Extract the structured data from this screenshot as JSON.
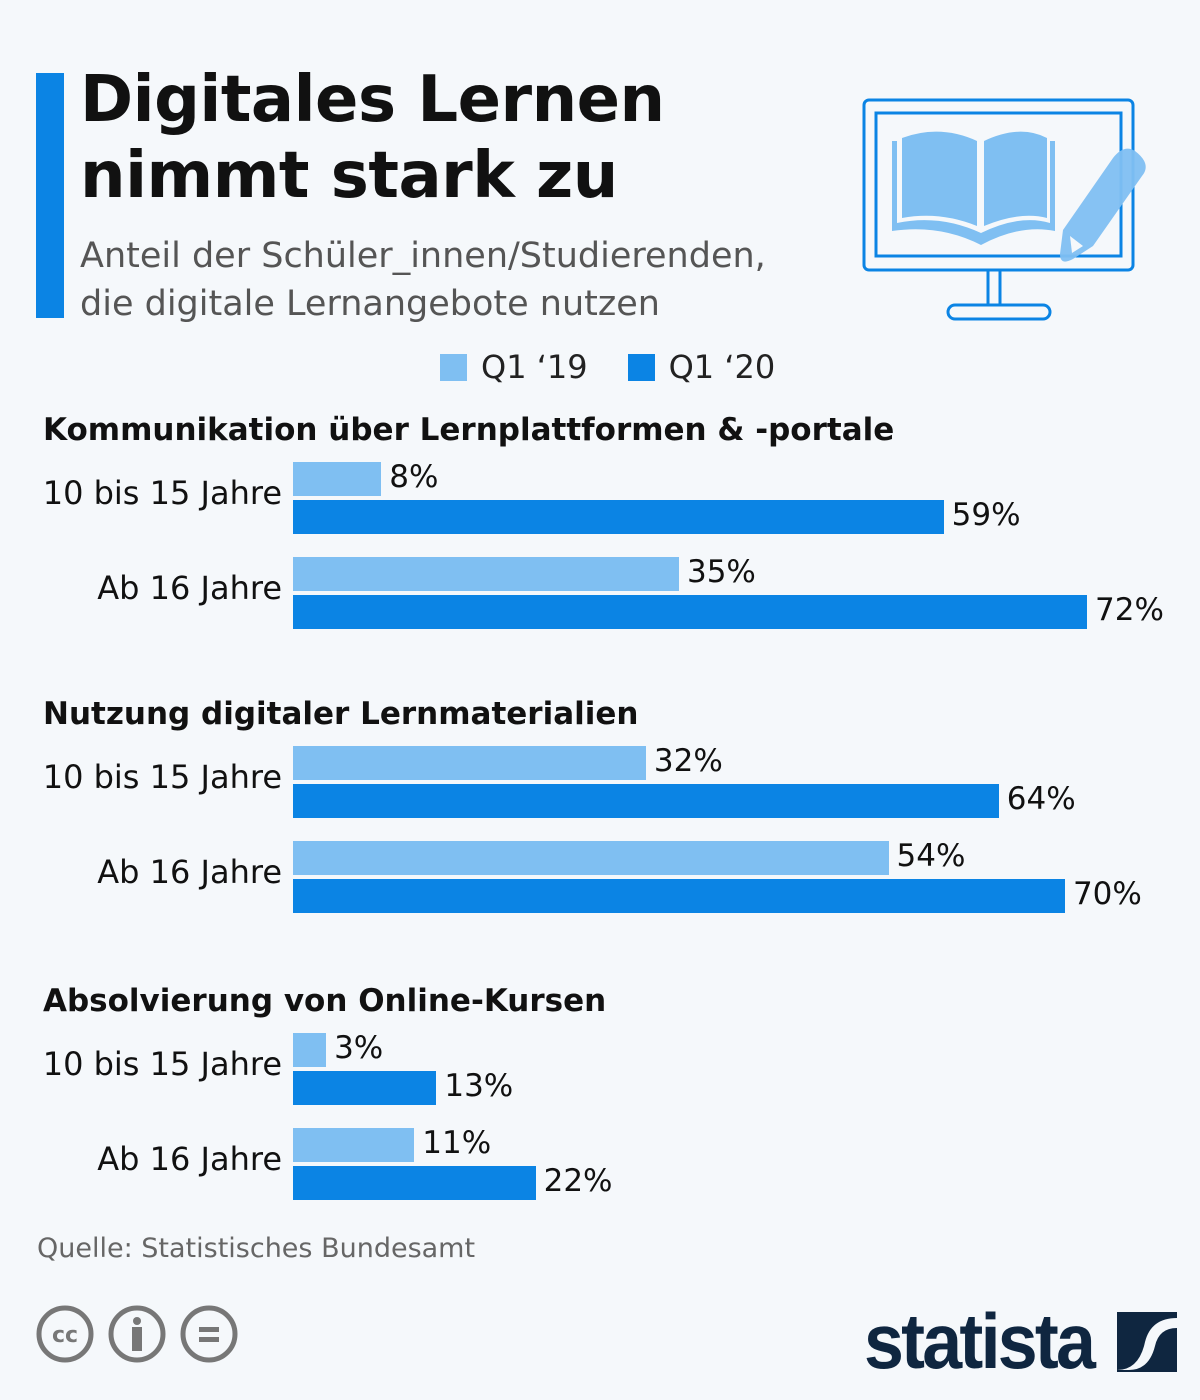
{
  "header": {
    "title_line1": "Digitales Lernen",
    "title_line2": "nimmt stark zu",
    "subtitle_line1": "Anteil der Schüler_innen/Studierenden,",
    "subtitle_line2": "die digitale Lernangebote nutzen",
    "icon": "monitor-book-pencil-icon"
  },
  "colors": {
    "q1_19": "#7fbff2",
    "q1_20": "#0b84e4",
    "accent": "#0b84e4",
    "background": "#f5f8fb"
  },
  "chart_data": {
    "type": "bar",
    "orientation": "horizontal",
    "legend": [
      "Q1 ‘19",
      "Q1 ‘20"
    ],
    "legend_placement": "top",
    "unit": "%",
    "groups": [
      {
        "title": "Kommunikation über Lernplattformen & -portale",
        "rows": [
          {
            "label": "10 bis 15 Jahre",
            "values": [
              8,
              59
            ]
          },
          {
            "label": "Ab 16 Jahre",
            "values": [
              35,
              72
            ]
          }
        ]
      },
      {
        "title": "Nutzung digitaler Lernmaterialien",
        "rows": [
          {
            "label": "10 bis 15 Jahre",
            "values": [
              32,
              64
            ]
          },
          {
            "label": "Ab 16 Jahre",
            "values": [
              54,
              70
            ]
          }
        ]
      },
      {
        "title": "Absolvierung von Online-Kursen",
        "rows": [
          {
            "label": "10 bis 15 Jahre",
            "values": [
              3,
              13
            ]
          },
          {
            "label": "Ab 16 Jahre",
            "values": [
              11,
              22
            ]
          }
        ]
      }
    ]
  },
  "footer": {
    "source": "Quelle: Statistisches Bundesamt",
    "brand": "statista",
    "license_icons": [
      "cc-icon",
      "by-attribution-icon",
      "no-derivatives-icon"
    ]
  }
}
